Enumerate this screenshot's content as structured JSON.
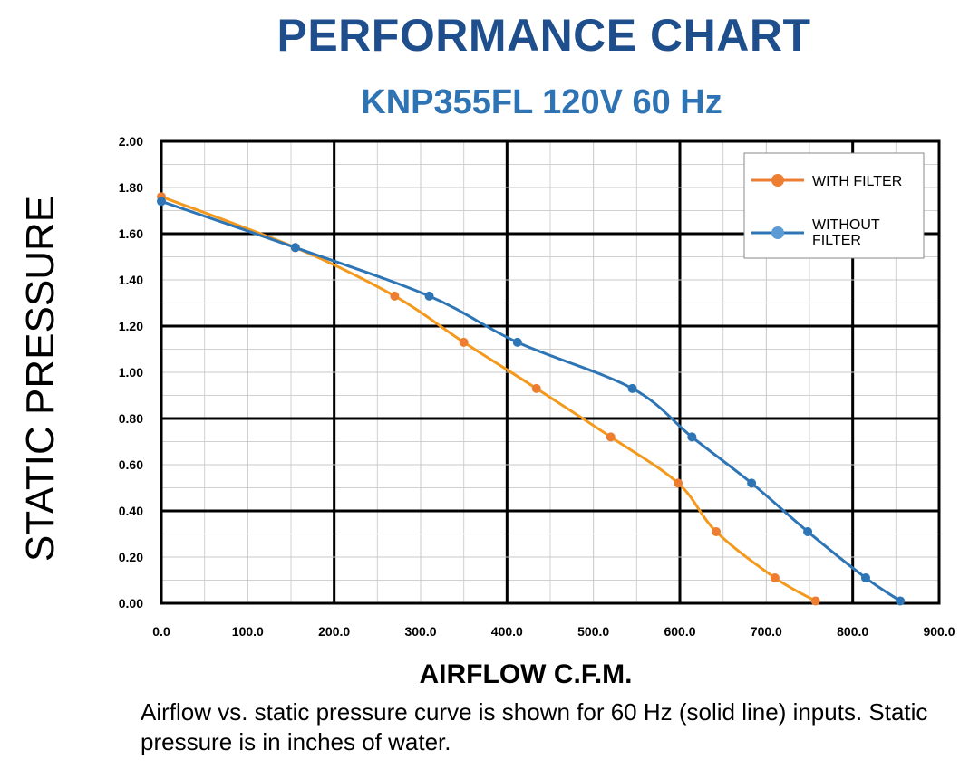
{
  "chart_data": {
    "type": "line",
    "title": "PERFORMANCE CHART",
    "subtitle": "KNP355FL 120V 60 Hz",
    "xlabel": "AIRFLOW C.F.M.",
    "ylabel": "STATIC PRESSURE",
    "xlim": [
      0,
      900
    ],
    "ylim": [
      0,
      2
    ],
    "x_ticks": [
      "0.0",
      "100.0",
      "200.0",
      "300.0",
      "400.0",
      "500.0",
      "600.0",
      "700.0",
      "800.0",
      "900.0"
    ],
    "y_ticks": [
      "0.00",
      "0.20",
      "0.40",
      "0.60",
      "0.80",
      "1.00",
      "1.20",
      "1.40",
      "1.60",
      "1.80",
      "2.00"
    ],
    "grid": true,
    "legend_position": "top-right",
    "series": [
      {
        "name": "WITH FILTER",
        "color": "#f39a1e",
        "marker_color": "#ed7d31",
        "points": [
          [
            0,
            1.76
          ],
          [
            155,
            1.54
          ],
          [
            270,
            1.33
          ],
          [
            350,
            1.13
          ],
          [
            434,
            0.93
          ],
          [
            520,
            0.72
          ],
          [
            598,
            0.52
          ],
          [
            642,
            0.31
          ],
          [
            710,
            0.11
          ],
          [
            757,
            0.01
          ]
        ]
      },
      {
        "name": "WITHOUT FILTER",
        "color": "#2e75b6",
        "marker_color": "#2e75b6",
        "points": [
          [
            0,
            1.74
          ],
          [
            155,
            1.54
          ],
          [
            310,
            1.33
          ],
          [
            412,
            1.13
          ],
          [
            545,
            0.93
          ],
          [
            614,
            0.72
          ],
          [
            683,
            0.52
          ],
          [
            748,
            0.31
          ],
          [
            815,
            0.11
          ],
          [
            855,
            0.01
          ]
        ]
      }
    ]
  },
  "caption": "Airflow vs. static pressure curve is shown for 60 Hz (solid line) inputs. Static pressure is in inches of water."
}
